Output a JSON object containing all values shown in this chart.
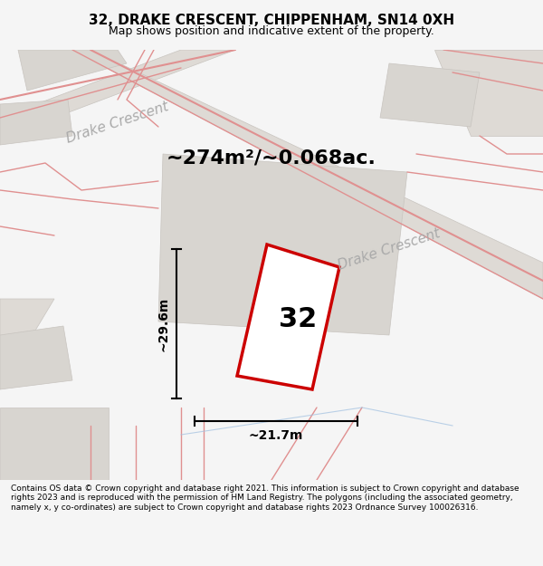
{
  "title": "32, DRAKE CRESCENT, CHIPPENHAM, SN14 0XH",
  "subtitle": "Map shows position and indicative extent of the property.",
  "area_text": "~274m²/~0.068ac.",
  "label_32": "32",
  "dim_width": "~21.7m",
  "dim_height": "~29.6m",
  "street_label1": "Drake Crescent",
  "street_label2": "Drake Crescent",
  "footer": "Contains OS data © Crown copyright and database right 2021. This information is subject to Crown copyright and database rights 2023 and is reproduced with the permission of HM Land Registry. The polygons (including the associated geometry, namely x, y co-ordinates) are subject to Crown copyright and database rights 2023 Ordnance Survey 100026316.",
  "bg_color": "#f0efed",
  "map_bg": "#e8e6e3",
  "plot_fill": "#ffffff",
  "plot_edge": "#cc0000",
  "road_fill": "#d8d4cf",
  "building_fill": "#e0ddd9",
  "street_color": "#aaaaaa",
  "title_fontsize": 11,
  "subtitle_fontsize": 9,
  "area_fontsize": 16,
  "label_fontsize": 22,
  "dim_fontsize": 10,
  "street_fontsize": 11,
  "footer_fontsize": 6.5
}
